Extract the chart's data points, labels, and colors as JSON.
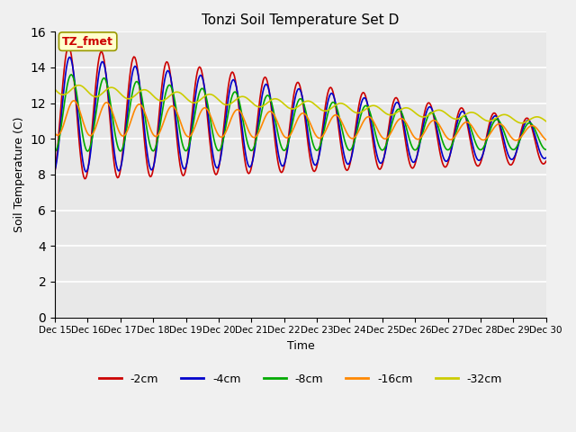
{
  "title": "Tonzi Soil Temperature Set D",
  "xlabel": "Time",
  "ylabel": "Soil Temperature (C)",
  "legend_label": "TZ_fmet",
  "ylim": [
    0,
    16
  ],
  "yticks": [
    0,
    2,
    4,
    6,
    8,
    10,
    12,
    14,
    16
  ],
  "xtick_labels": [
    "Dec 15",
    "Dec 16",
    "Dec 17",
    "Dec 18",
    "Dec 19",
    "Dec 20",
    "Dec 21",
    "Dec 22",
    "Dec 23",
    "Dec 24",
    "Dec 25",
    "Dec 26",
    "Dec 27",
    "Dec 28",
    "Dec 29",
    "Dec 30"
  ],
  "series_colors": [
    "#cc0000",
    "#0000cc",
    "#00aa00",
    "#ff8800",
    "#cccc00"
  ],
  "series_labels": [
    "-2cm",
    "-4cm",
    "-8cm",
    "-16cm",
    "-32cm"
  ],
  "fig_bg_color": "#f0f0f0",
  "plot_bg_color": "#e8e8e8",
  "legend_box_facecolor": "#ffffcc",
  "legend_box_edgecolor": "#999900",
  "legend_text_color": "#cc0000",
  "grid_color": "#ffffff",
  "n_points": 480
}
